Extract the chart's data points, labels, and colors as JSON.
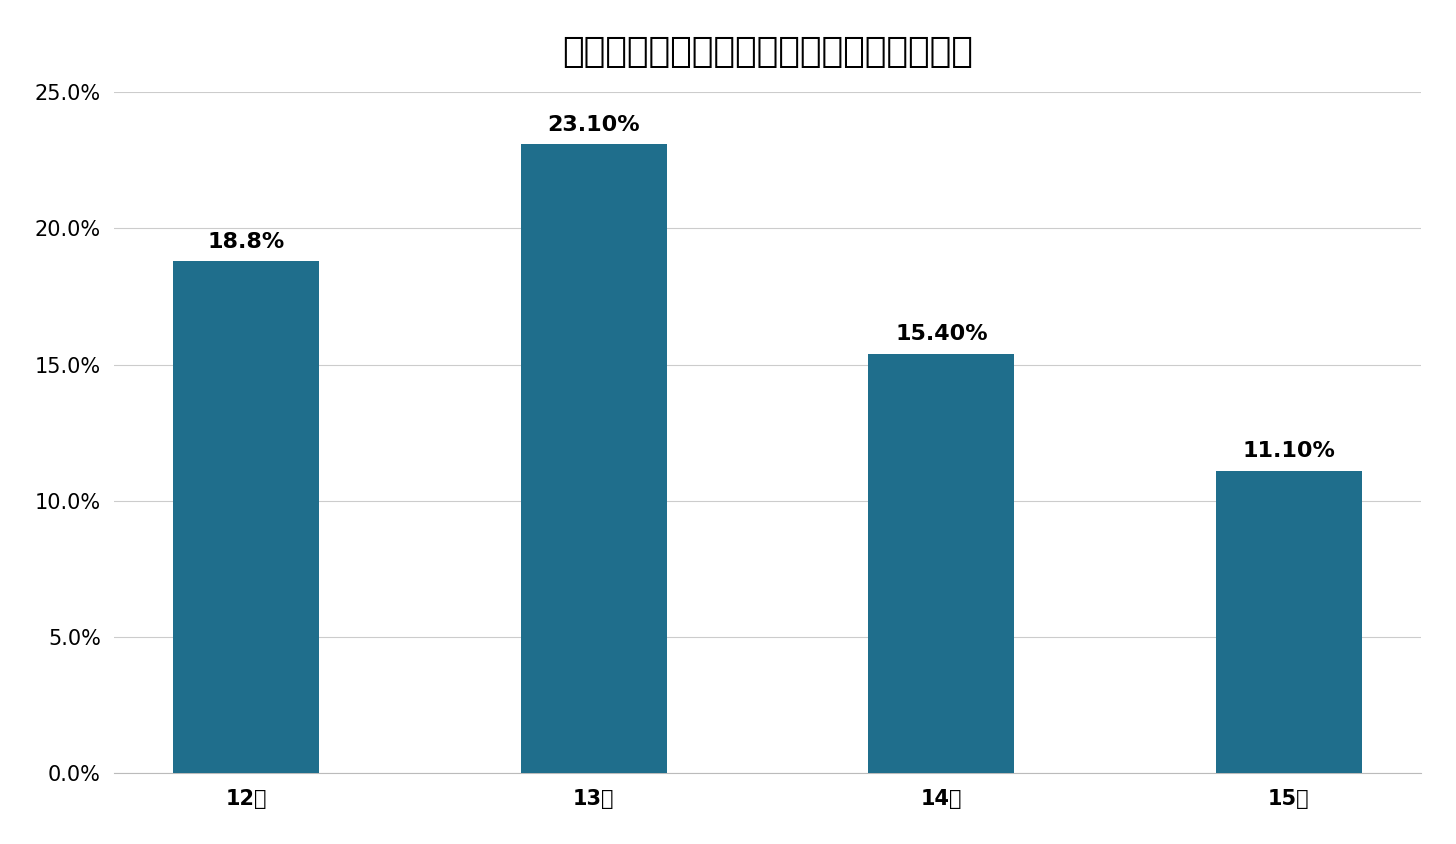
{
  "title": "マンション大規模修繕工事の平均修繕周期",
  "categories": [
    "12年",
    "13年",
    "14年",
    "15年"
  ],
  "values": [
    18.8,
    23.1,
    15.4,
    11.1
  ],
  "labels": [
    "18.8%",
    "23.10%",
    "15.40%",
    "11.10%"
  ],
  "bar_color": "#1f6e8c",
  "background_color": "#f7f7f2",
  "ylim": [
    0,
    25
  ],
  "yticks": [
    0,
    5.0,
    10.0,
    15.0,
    20.0,
    25.0
  ],
  "ytick_labels": [
    "0.0%",
    "5.0%",
    "10.0%",
    "15.0%",
    "20.0%",
    "25.0%"
  ],
  "title_fontsize": 26,
  "label_fontsize": 16,
  "tick_fontsize": 15,
  "grid_color": "#cccccc"
}
